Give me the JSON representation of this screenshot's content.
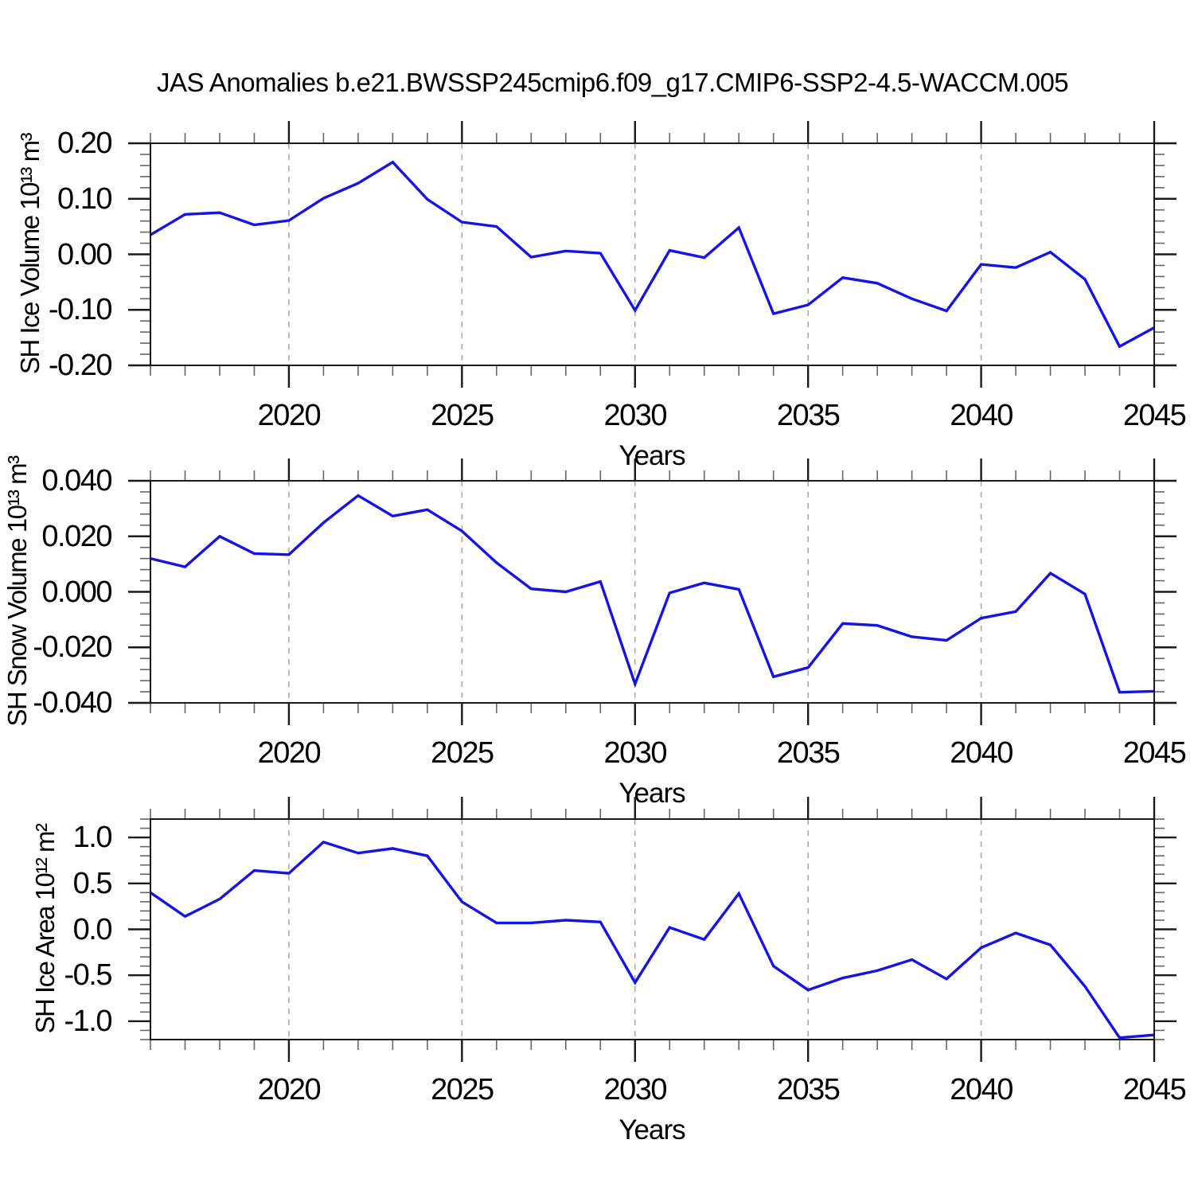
{
  "title": "JAS Anomalies b.e21.BWSSP245cmip6.f09_g17.CMIP6-SSP2-4.5-WACCM.005",
  "colors": {
    "line": "#1414e6",
    "frame": "#1a1a1a",
    "minor_tick": "#666666",
    "gridline": "#aaaaaa",
    "background": "#ffffff"
  },
  "chart_data": [
    {
      "type": "line",
      "name": "sh-ice-volume",
      "ylabel": "SH Ice Volume 10¹³ m³",
      "xlabel": "Years",
      "legend": "none",
      "grid": "vertical dashed",
      "x": [
        2016,
        2017,
        2018,
        2019,
        2020,
        2021,
        2022,
        2023,
        2024,
        2025,
        2026,
        2027,
        2028,
        2029,
        2030,
        2031,
        2032,
        2033,
        2034,
        2035,
        2036,
        2037,
        2038,
        2039,
        2040,
        2041,
        2042,
        2043,
        2044,
        2045
      ],
      "values": [
        0.035,
        0.072,
        0.075,
        0.053,
        0.061,
        0.101,
        0.128,
        0.166,
        0.099,
        0.058,
        0.05,
        -0.005,
        0.006,
        0.002,
        -0.101,
        0.007,
        -0.006,
        0.048,
        -0.107,
        -0.091,
        -0.042,
        -0.052,
        -0.08,
        -0.102,
        -0.018,
        -0.024,
        0.004,
        -0.045,
        -0.166,
        -0.132
      ],
      "ylim": [
        -0.2,
        0.2
      ],
      "yticks": [
        {
          "value": 0.2,
          "label": "0.20"
        },
        {
          "value": 0.1,
          "label": "0.10"
        },
        {
          "value": 0.0,
          "label": "0.00"
        },
        {
          "value": -0.1,
          "label": "-0.10"
        },
        {
          "value": -0.2,
          "label": "-0.20"
        }
      ],
      "ytick_minor_step": 0.02,
      "xticks": [
        {
          "value": 2020,
          "label": "2020"
        },
        {
          "value": 2025,
          "label": "2025"
        },
        {
          "value": 2030,
          "label": "2030"
        },
        {
          "value": 2035,
          "label": "2035"
        },
        {
          "value": 2040,
          "label": "2040"
        },
        {
          "value": 2045,
          "label": "2045"
        }
      ],
      "xtick_minor_step": 1,
      "gridlines_at_x": [
        2020,
        2025,
        2030,
        2035,
        2040
      ]
    },
    {
      "type": "line",
      "name": "sh-snow-volume",
      "ylabel": "SH Snow Volume 10¹³ m³",
      "xlabel": "Years",
      "legend": "none",
      "grid": "vertical dashed",
      "x": [
        2016,
        2017,
        2018,
        2019,
        2020,
        2021,
        2022,
        2023,
        2024,
        2025,
        2026,
        2027,
        2028,
        2029,
        2030,
        2031,
        2032,
        2033,
        2034,
        2035,
        2036,
        2037,
        2038,
        2039,
        2040,
        2041,
        2042,
        2043,
        2044,
        2045
      ],
      "values": [
        0.012,
        0.009,
        0.02,
        0.0138,
        0.0134,
        0.0249,
        0.0347,
        0.0273,
        0.0296,
        0.0219,
        0.0105,
        0.0011,
        0.0,
        0.0037,
        -0.0332,
        -0.0004,
        0.0032,
        0.0009,
        -0.0306,
        -0.0273,
        -0.0114,
        -0.0121,
        -0.0162,
        -0.0175,
        -0.0095,
        -0.0071,
        0.0067,
        -0.0008,
        -0.0362,
        -0.0358
      ],
      "ylim": [
        -0.04,
        0.04
      ],
      "yticks": [
        {
          "value": 0.04,
          "label": "0.040"
        },
        {
          "value": 0.02,
          "label": "0.020"
        },
        {
          "value": 0.0,
          "label": "0.000"
        },
        {
          "value": -0.02,
          "label": "-0.020"
        },
        {
          "value": -0.04,
          "label": "-0.040"
        }
      ],
      "ytick_minor_step": 0.004,
      "xticks": [
        {
          "value": 2020,
          "label": "2020"
        },
        {
          "value": 2025,
          "label": "2025"
        },
        {
          "value": 2030,
          "label": "2030"
        },
        {
          "value": 2035,
          "label": "2035"
        },
        {
          "value": 2040,
          "label": "2040"
        },
        {
          "value": 2045,
          "label": "2045"
        }
      ],
      "xtick_minor_step": 1,
      "gridlines_at_x": [
        2020,
        2025,
        2030,
        2035,
        2040
      ]
    },
    {
      "type": "line",
      "name": "sh-ice-area",
      "ylabel": "SH Ice Area 10¹² m²",
      "xlabel": "Years",
      "legend": "none",
      "grid": "vertical dashed",
      "x": [
        2016,
        2017,
        2018,
        2019,
        2020,
        2021,
        2022,
        2023,
        2024,
        2025,
        2026,
        2027,
        2028,
        2029,
        2030,
        2031,
        2032,
        2033,
        2034,
        2035,
        2036,
        2037,
        2038,
        2039,
        2040,
        2041,
        2042,
        2043,
        2044,
        2045
      ],
      "values": [
        0.4,
        0.14,
        0.33,
        0.64,
        0.61,
        0.95,
        0.83,
        0.88,
        0.8,
        0.3,
        0.07,
        0.07,
        0.1,
        0.08,
        -0.58,
        0.02,
        -0.11,
        0.39,
        -0.4,
        -0.66,
        -0.53,
        -0.45,
        -0.33,
        -0.54,
        -0.2,
        -0.04,
        -0.17,
        -0.62,
        -1.18,
        -1.15
      ],
      "ylim": [
        -1.2,
        1.2
      ],
      "yticks": [
        {
          "value": 1.0,
          "label": "1.0"
        },
        {
          "value": 0.5,
          "label": "0.5"
        },
        {
          "value": 0.0,
          "label": "0.0"
        },
        {
          "value": -0.5,
          "label": "-0.5"
        },
        {
          "value": -1.0,
          "label": "-1.0"
        }
      ],
      "ytick_minor_step": 0.1,
      "xticks": [
        {
          "value": 2020,
          "label": "2020"
        },
        {
          "value": 2025,
          "label": "2025"
        },
        {
          "value": 2030,
          "label": "2030"
        },
        {
          "value": 2035,
          "label": "2035"
        },
        {
          "value": 2040,
          "label": "2040"
        },
        {
          "value": 2045,
          "label": "2045"
        }
      ],
      "xtick_minor_step": 1,
      "gridlines_at_x": [
        2020,
        2025,
        2030,
        2035,
        2040
      ]
    }
  ]
}
